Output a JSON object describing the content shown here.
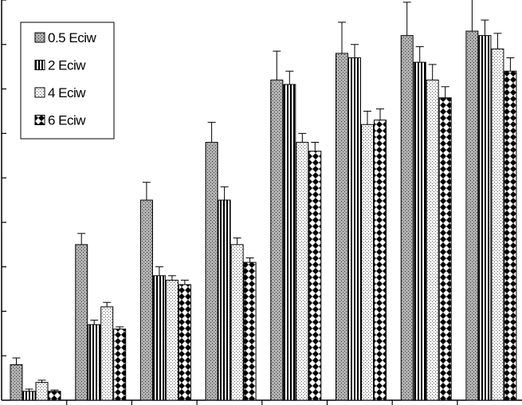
{
  "chart_data": {
    "type": "bar",
    "title": "",
    "xlabel": "",
    "ylabel": "",
    "categories": [
      "",
      "",
      "",
      "",
      "",
      "",
      "",
      ""
    ],
    "ylim": [
      0,
      9
    ],
    "grid": false,
    "legend_position": "top-left",
    "series": [
      {
        "name": "0.5 Eciw",
        "pattern": "cross-hatch",
        "values": [
          0.8,
          3.5,
          4.5,
          5.8,
          7.2,
          7.8,
          8.2,
          8.3
        ],
        "errors": [
          0.15,
          0.25,
          0.4,
          0.45,
          0.65,
          0.7,
          0.75,
          0.8
        ]
      },
      {
        "name": "2 Eciw",
        "pattern": "vertical-stripes",
        "values": [
          0.2,
          1.7,
          2.8,
          4.5,
          7.1,
          7.7,
          7.6,
          8.2
        ],
        "errors": [
          0.05,
          0.1,
          0.2,
          0.3,
          0.3,
          0.3,
          0.35,
          0.35
        ]
      },
      {
        "name": "4 Eciw",
        "pattern": "dots",
        "values": [
          0.4,
          2.1,
          2.7,
          3.5,
          5.8,
          6.2,
          7.2,
          7.9
        ],
        "errors": [
          0.05,
          0.1,
          0.1,
          0.15,
          0.2,
          0.3,
          0.35,
          0.35
        ]
      },
      {
        "name": "6 Eciw",
        "pattern": "diamonds",
        "values": [
          0.2,
          1.6,
          2.6,
          3.1,
          5.6,
          6.3,
          6.8,
          7.4
        ],
        "errors": [
          0.03,
          0.05,
          0.1,
          0.1,
          0.2,
          0.25,
          0.25,
          0.3
        ]
      }
    ]
  },
  "colors": {
    "background": "#ffffff",
    "ink": "#000000"
  }
}
